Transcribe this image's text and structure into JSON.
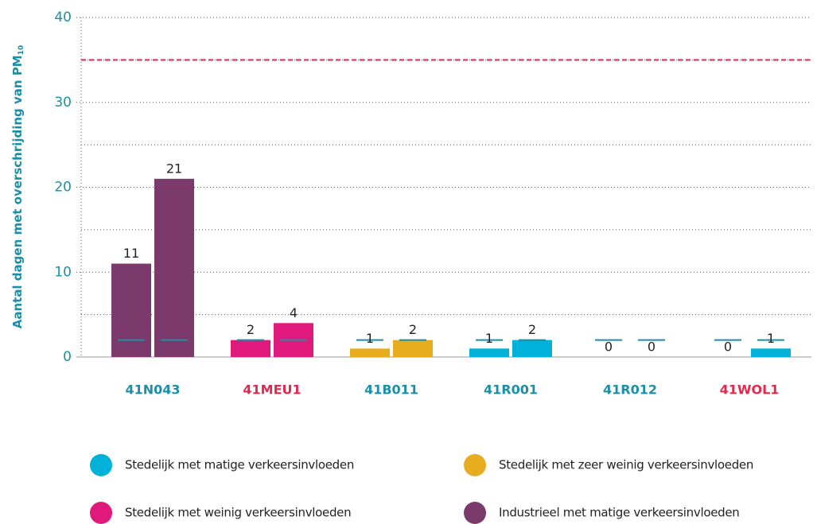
{
  "chart_data": {
    "type": "bar",
    "y_label": "Aantal dagen met overschrijding van PM",
    "y_label_sub": "10",
    "categories": [
      "41N043",
      "41MEU1",
      "41B011",
      "41R001",
      "41R012",
      "41WOL1"
    ],
    "category_label_colors": [
      "#1b8fa6",
      "#e0294f",
      "#1b8fa6",
      "#1b8fa6",
      "#1b8fa6",
      "#e0294f"
    ],
    "bar_colors": [
      "#7c3a6c",
      "#e0197d",
      "#e8ad1f",
      "#00b1d9",
      "#00b1d9",
      "#00b1d9"
    ],
    "series": [
      {
        "values": [
          11,
          2,
          1,
          1,
          0,
          0
        ],
        "reference_values": [
          2,
          2,
          2,
          2,
          2,
          2
        ]
      },
      {
        "values": [
          21,
          4,
          2,
          2,
          0,
          1
        ],
        "reference_values": [
          2,
          2,
          2,
          2,
          2,
          2
        ]
      }
    ],
    "reference_color": "#1b8fa6",
    "limit": 35,
    "limit_color": "#e0294f",
    "ylim": [
      0,
      40
    ],
    "yticks": [
      0,
      10,
      20,
      30,
      40
    ],
    "minor_yticks": [
      5,
      15,
      25,
      35
    ],
    "grid": true,
    "legend": [
      {
        "name": "Stedelijk met matige verkeersinvloeden",
        "color": "#00b1d9"
      },
      {
        "name": "Stedelijk met zeer weinig verkeersinvloeden",
        "color": "#e8ad1f"
      },
      {
        "name": "Stedelijk met weinig verkeersinvloeden",
        "color": "#e0197d"
      },
      {
        "name": "Industrieel met matige verkeersinvloeden",
        "color": "#7c3a6c"
      }
    ]
  }
}
